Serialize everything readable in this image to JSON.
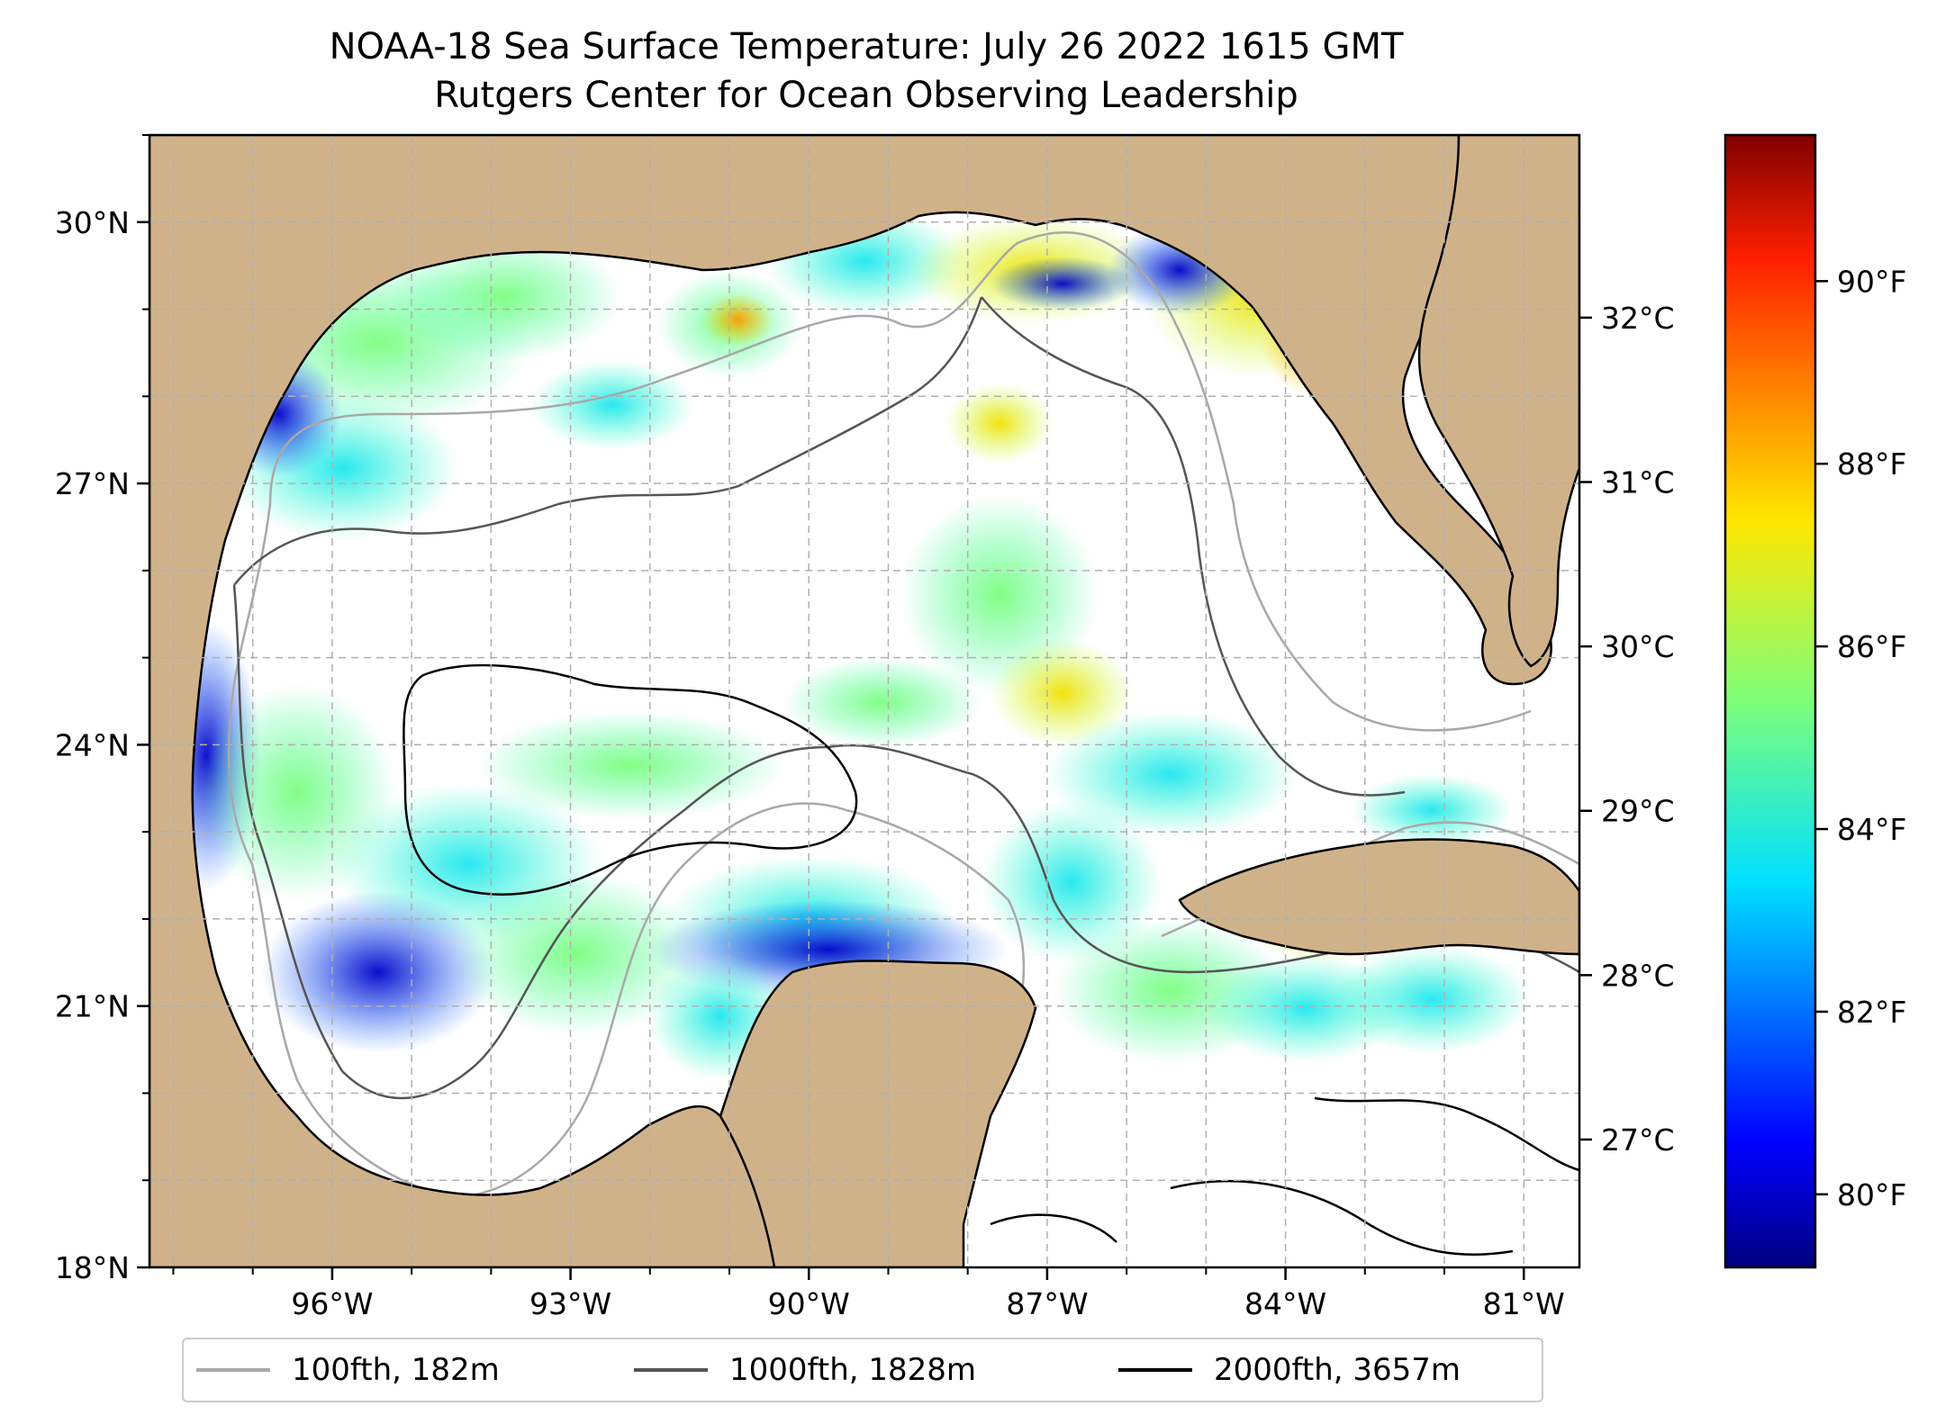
{
  "title": {
    "line1": "NOAA-18 Sea Surface Temperature: July 26 2022 1615 GMT",
    "line2": "Rutgers Center for Ocean Observing Leadership"
  },
  "map": {
    "lat_range": [
      18,
      31
    ],
    "lon_range": [
      -98.3,
      -80.3
    ],
    "lat_ticks": [
      "18°N",
      "21°N",
      "24°N",
      "27°N",
      "30°N"
    ],
    "lat_tick_values": [
      18,
      21,
      24,
      27,
      30
    ],
    "lon_ticks": [
      "96°W",
      "93°W",
      "90°W",
      "87°W",
      "84°W",
      "81°W"
    ],
    "lon_tick_values": [
      -96,
      -93,
      -90,
      -87,
      -84,
      -81
    ],
    "grid": true,
    "colors": {
      "land": "#d0b28a",
      "ocean_nodata": "#ffffff",
      "grid": "#b0b0b0"
    }
  },
  "colorbar": {
    "colormap": "jet",
    "range_f": [
      79.2,
      91.6
    ],
    "fahrenheit_ticks": [
      {
        "label": "80°F",
        "value": 80
      },
      {
        "label": "82°F",
        "value": 82
      },
      {
        "label": "84°F",
        "value": 84
      },
      {
        "label": "86°F",
        "value": 86
      },
      {
        "label": "88°F",
        "value": 88
      },
      {
        "label": "90°F",
        "value": 90
      }
    ],
    "celsius_ticks": [
      {
        "label": "27°C",
        "value": 27
      },
      {
        "label": "28°C",
        "value": 28
      },
      {
        "label": "29°C",
        "value": 29
      },
      {
        "label": "30°C",
        "value": 30
      },
      {
        "label": "31°C",
        "value": 31
      },
      {
        "label": "32°C",
        "value": 32
      }
    ]
  },
  "legend": {
    "placement": "bottom-center",
    "items": [
      {
        "label": "100fth, 182m",
        "color": "#a8a8a8"
      },
      {
        "label": "1000fth, 1828m",
        "color": "#555555"
      },
      {
        "label": "2000fth, 3657m",
        "color": "#000000"
      }
    ]
  }
}
